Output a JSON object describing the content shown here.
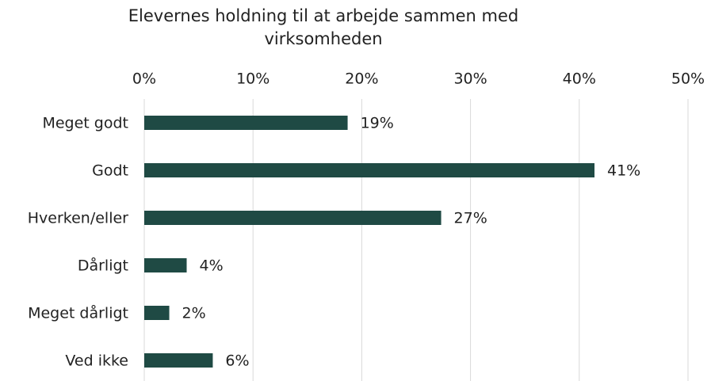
{
  "chart_data": {
    "type": "barh",
    "title": "Elevernes holdning til at arbejde sammen med virksomheden",
    "categories": [
      "Meget godt",
      "Godt",
      "Hverken/eller",
      "Dårligt",
      "Meget dårligt",
      "Ved ikke"
    ],
    "values": [
      18.7,
      41.4,
      27.3,
      3.9,
      2.3,
      6.3
    ],
    "value_labels": [
      "19%",
      "41%",
      "27%",
      "4%",
      "2%",
      "6%"
    ],
    "color": "#1f4a44",
    "xlim": [
      0,
      50
    ],
    "xticks": [
      {
        "value": 0,
        "label": "0%"
      },
      {
        "value": 10,
        "label": "10%"
      },
      {
        "value": 20,
        "label": "20%"
      },
      {
        "value": 30,
        "label": "30%"
      },
      {
        "value": 40,
        "label": "40%"
      },
      {
        "value": 50,
        "label": "50%"
      }
    ],
    "grid": true
  }
}
